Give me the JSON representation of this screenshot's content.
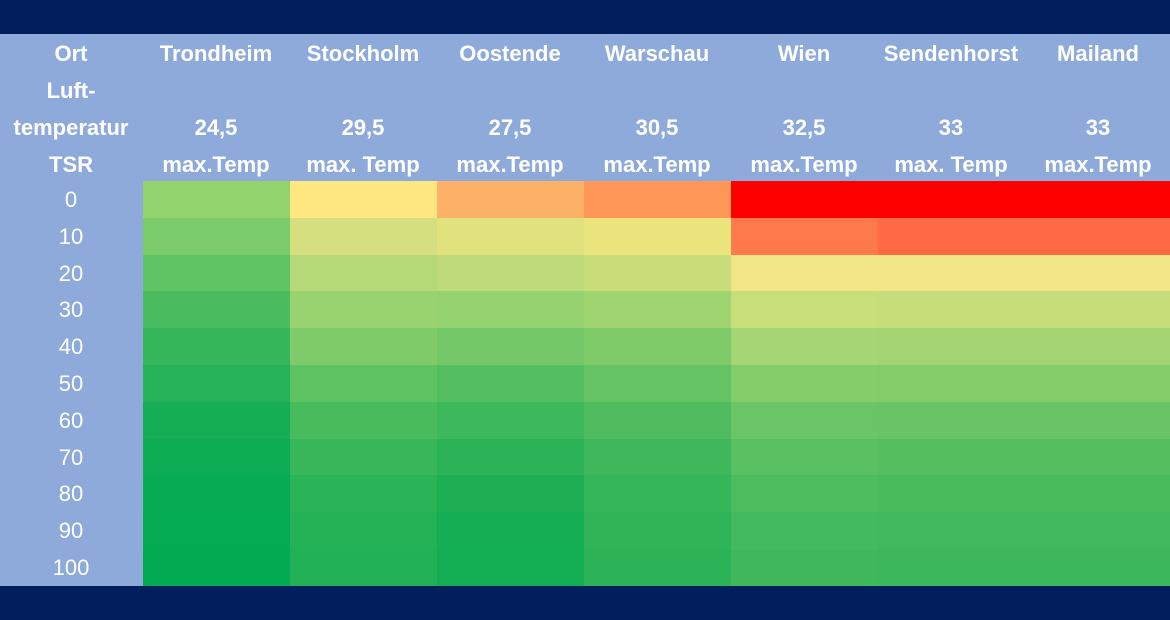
{
  "header": {
    "row_label_column": [
      "Ort",
      "Luft-",
      "temperatur",
      "TSR"
    ]
  },
  "chart_data": {
    "type": "heatmap",
    "locations": [
      "Trondheim",
      "Stockholm",
      "Oostende",
      "Warschau",
      "Wien",
      "Sendenhorst",
      "Mailand"
    ],
    "max_temperatures": [
      "24,5",
      "29,5",
      "27,5",
      "30,5",
      "32,5",
      "33",
      "33"
    ],
    "max_temp_labels": [
      "max.Temp",
      "max. Temp",
      "max.Temp",
      "max.Temp",
      "max.Temp",
      "max. Temp",
      "max.Temp"
    ],
    "tsr_values": [
      "0",
      "10",
      "20",
      "30",
      "40",
      "50",
      "60",
      "70",
      "80",
      "90",
      "100"
    ],
    "cell_colors": [
      [
        "#92d36e",
        "#ffe780",
        "#fdb166",
        "#fe9657",
        "#ff0000",
        "#ff0000",
        "#ff0000"
      ],
      [
        "#7acb69",
        "#d5df80",
        "#e0e27e",
        "#ebe47d",
        "#fe7a4d",
        "#ff6a44",
        "#ff6a44"
      ],
      [
        "#60c364",
        "#b6d978",
        "#bfdb79",
        "#c8dd79",
        "#f1e685",
        "#f1e685",
        "#f1e685"
      ],
      [
        "#48bc5e",
        "#98d36f",
        "#93d26e",
        "#9fd470",
        "#c8de79",
        "#c6dd79",
        "#c6dd79"
      ],
      [
        "#36b65b",
        "#7fcb69",
        "#74c868",
        "#7fcb69",
        "#a4d673",
        "#a2d572",
        "#a2d572"
      ],
      [
        "#26b258",
        "#5fc262",
        "#52be5f",
        "#66c364",
        "#85cd6b",
        "#82cc6a",
        "#82cc6a"
      ],
      [
        "#15ae55",
        "#48bb5d",
        "#3db85b",
        "#4fbd5f",
        "#6bc566",
        "#68c465",
        "#68c465"
      ],
      [
        "#0cad53",
        "#38b65a",
        "#2cb358",
        "#3fb85b",
        "#58c061",
        "#55bf60",
        "#55bf60"
      ],
      [
        "#07ac52",
        "#2bb357",
        "#1eaf55",
        "#36b65a",
        "#4cbc5e",
        "#48bb5d",
        "#48bb5d"
      ],
      [
        "#04ab51",
        "#25b156",
        "#16ae54",
        "#2fb458",
        "#43ba5d",
        "#40b95c",
        "#40b95c"
      ],
      [
        "#02ab51",
        "#22b056",
        "#13ad53",
        "#2cb358",
        "#3fb85b",
        "#3cb75b",
        "#3cb75b"
      ]
    ]
  }
}
